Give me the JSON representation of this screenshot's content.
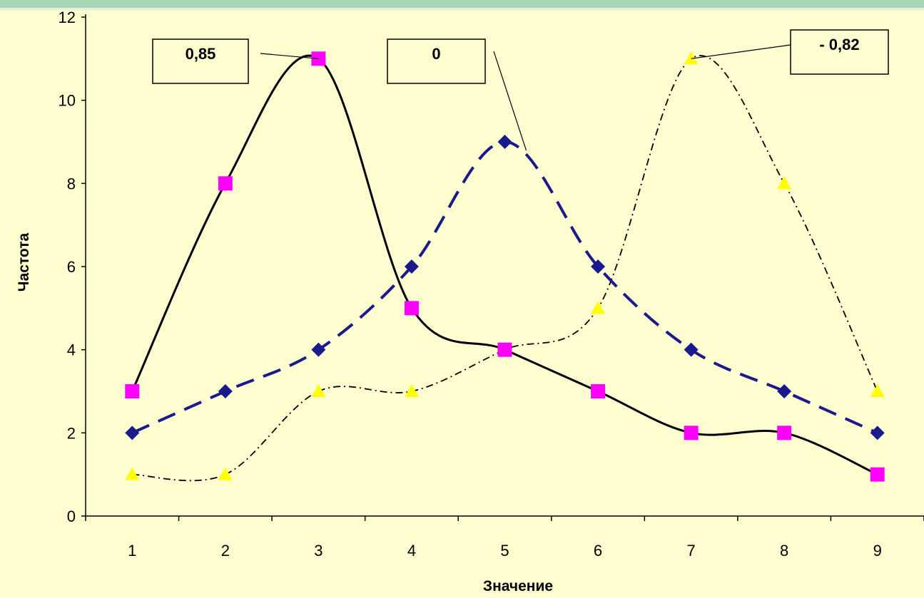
{
  "chart_data": {
    "type": "line",
    "title": "",
    "xlabel": "Значение",
    "ylabel": "Частота",
    "x": [
      1,
      2,
      3,
      4,
      5,
      6,
      7,
      8,
      9
    ],
    "xlim": [
      0.5,
      9.5
    ],
    "ylim": [
      0,
      12
    ],
    "yticks": [
      0,
      2,
      4,
      6,
      8,
      10,
      12
    ],
    "grid": false,
    "legend": "none",
    "series": [
      {
        "values": [
          3,
          8,
          11,
          5,
          4,
          3,
          2,
          2,
          1
        ],
        "color": "#ff00ff",
        "marker": "square",
        "line": "solid",
        "lineColor": "#000000"
      },
      {
        "values": [
          2,
          3,
          4,
          6,
          9,
          6,
          4,
          3,
          2
        ],
        "color": "#1a1a8c",
        "marker": "diamond",
        "line": "dashed",
        "lineColor": "#1a1a8c"
      },
      {
        "values": [
          1,
          1,
          3,
          3,
          4,
          5,
          11,
          8,
          3
        ],
        "color": "#ffff00",
        "marker": "triangle",
        "line": "dashdot",
        "lineColor": "#000000"
      }
    ],
    "annotations": [
      {
        "text": "0,85",
        "x": 3,
        "y": 11,
        "series": 0
      },
      {
        "text": "0",
        "x": 5,
        "y": 9,
        "series": 1
      },
      {
        "text": "- 0,82",
        "x": 7,
        "y": 11,
        "series": 2
      }
    ]
  },
  "colors": {
    "background": "#fdfdd0",
    "top_band": "#a9d5b8",
    "axis": "#000000"
  }
}
